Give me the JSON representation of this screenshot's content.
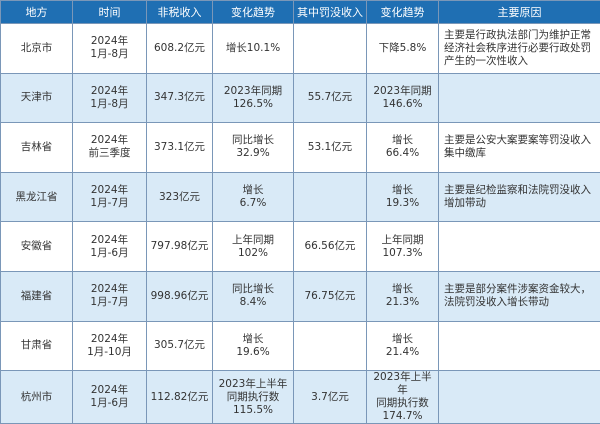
{
  "headers": [
    "地方",
    "时间",
    "非税收入",
    "变化趋势",
    "其中罚没收入",
    "变化趋势",
    "主要原因"
  ],
  "rows": [
    {
      "region": "北京市",
      "period": [
        "2024年",
        "1月-8月"
      ],
      "nontax": "608.2亿元",
      "trend": [
        "增长10.1%"
      ],
      "fines": "",
      "fine_trend": [
        "下降5.8%"
      ],
      "reason": [
        "主要是行政执法部门为维护正常",
        "经济社会秩序进行必要行政处罚",
        "产生的一次性收入"
      ]
    },
    {
      "region": "天津市",
      "period": [
        "2024年",
        "1月-8月"
      ],
      "nontax": "347.3亿元",
      "trend": [
        "2023年同期",
        "126.5%"
      ],
      "fines": "55.7亿元",
      "fine_trend": [
        "2023年同期",
        "146.6%"
      ],
      "reason": []
    },
    {
      "region": "吉林省",
      "period": [
        "2024年",
        "前三季度"
      ],
      "nontax": "373.1亿元",
      "trend": [
        "同比增长",
        "32.9%"
      ],
      "fines": "53.1亿元",
      "fine_trend": [
        "增长",
        "66.4%"
      ],
      "reason": [
        "主要是公安大案要案等罚没收入",
        "集中缴库"
      ]
    },
    {
      "region": "黑龙江省",
      "period": [
        "2024年",
        "1月-7月"
      ],
      "nontax": "323亿元",
      "trend": [
        "增长",
        "6.7%"
      ],
      "fines": "",
      "fine_trend": [
        "增长",
        "19.3%"
      ],
      "reason": [
        "主要是纪检监察和法院罚没收入",
        "增加带动"
      ]
    },
    {
      "region": "安徽省",
      "period": [
        "2024年",
        "1月-6月"
      ],
      "nontax": "797.98亿元",
      "trend": [
        "上年同期",
        "102%"
      ],
      "fines": "66.56亿元",
      "fine_trend": [
        "上年同期",
        "107.3%"
      ],
      "reason": []
    },
    {
      "region": "福建省",
      "period": [
        "2024年",
        "1月-7月"
      ],
      "nontax": "998.96亿元",
      "trend": [
        "同比增长",
        "8.4%"
      ],
      "fines": "76.75亿元",
      "fine_trend": [
        "增长",
        "21.3%"
      ],
      "reason": [
        "主要是部分案件涉案资金较大，",
        "法院罚没收入增长带动"
      ]
    },
    {
      "region": "甘肃省",
      "period": [
        "2024年",
        "1月-10月"
      ],
      "nontax": "305.7亿元",
      "trend": [
        "增长",
        "19.6%"
      ],
      "fines": "",
      "fine_trend": [
        "增长",
        "21.4%"
      ],
      "reason": []
    },
    {
      "region": "杭州市",
      "period": [
        "2024年",
        "1月-6月"
      ],
      "nontax": "112.82亿元",
      "trend": [
        "2023年上半年",
        "同期执行数",
        "115.5%"
      ],
      "fines": "3.7亿元",
      "fine_trend": [
        "2023年上半年",
        "同期执行数",
        "174.7%"
      ],
      "reason": []
    }
  ]
}
